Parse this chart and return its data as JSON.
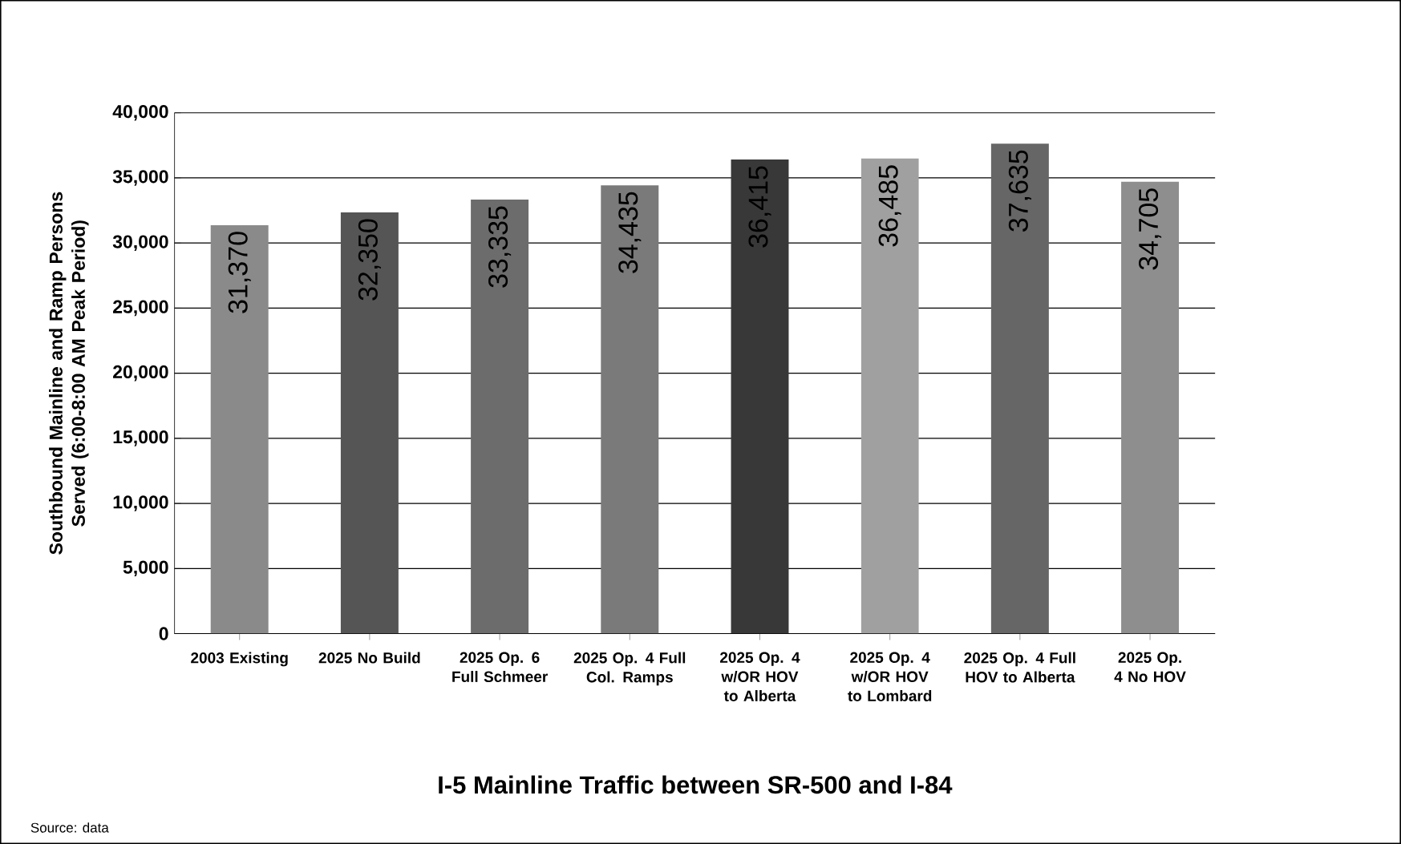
{
  "chart_data": {
    "type": "bar",
    "title": "I-5 Mainline Traffic between SR-500 and I-84",
    "ylabel": "Southbound Mainline and Ramp Persons Served (6:00-8:00 AM Peak Period)",
    "categories": [
      "2003 Existing",
      "2025 No Build",
      "2025 Op. 6 Full Schmeer",
      "2025 Op. 4 Full Col. Ramps",
      "2025 Op. 4 w/OR HOV to Alberta",
      "2025 Op. 4 w/OR HOV to Lombard",
      "2025 Op. 4 Full HOV to Alberta",
      "2025 Op. 4 No HOV"
    ],
    "values": [
      31370,
      32350,
      33335,
      34435,
      36415,
      36485,
      37635,
      34705
    ],
    "colors": [
      "#8a8a8a",
      "#555555",
      "#6c6c6c",
      "#7a7a7a",
      "#383838",
      "#a0a0a0",
      "#666666",
      "#8e8e8e"
    ],
    "ylim": [
      0,
      40000
    ],
    "yticks": [
      {
        "value": 0,
        "label": "0"
      },
      {
        "value": 5000,
        "label": "5,000"
      },
      {
        "value": 10000,
        "label": "10,000"
      },
      {
        "value": 15000,
        "label": "15,000"
      },
      {
        "value": 20000,
        "label": "20,000"
      },
      {
        "value": 25000,
        "label": "25,000"
      },
      {
        "value": 30000,
        "label": "30,000"
      },
      {
        "value": 35000,
        "label": "35,000"
      },
      {
        "value": 40000,
        "label": "40,000"
      }
    ],
    "grid": "y",
    "value_labels": [
      "31,370",
      "32,350",
      "33,335",
      "34,435",
      "36,415",
      "36,485",
      "37,635",
      "34,705"
    ],
    "annotations": [
      "Source: data"
    ]
  }
}
